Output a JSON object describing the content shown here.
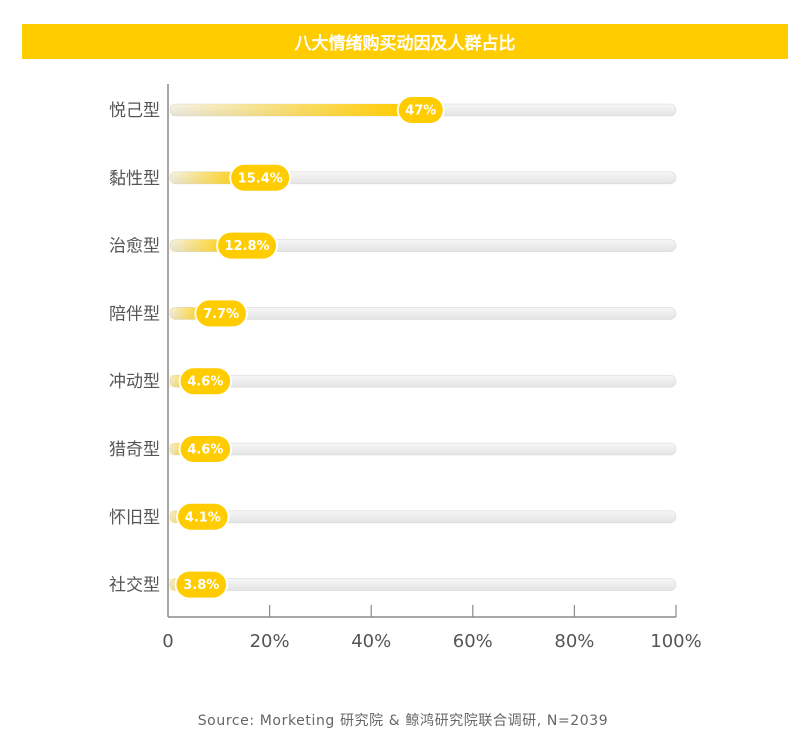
{
  "colors": {
    "accent": "#FFCC00",
    "track": "#ECECEC",
    "axis": "#8A8A8A",
    "label": "#555555",
    "badge_text": "#ffffff"
  },
  "chart_data": {
    "type": "bar",
    "orientation": "horizontal",
    "title": "八大情绪购买动因及人群占比",
    "categories": [
      "悦己型",
      "黏性型",
      "治愈型",
      "陪伴型",
      "冲动型",
      "猎奇型",
      "怀旧型",
      "社交型"
    ],
    "values": [
      47,
      15.4,
      12.8,
      7.7,
      4.6,
      4.6,
      4.1,
      3.8
    ],
    "value_labels": [
      "47%",
      "15.4%",
      "12.8%",
      "7.7%",
      "4.6%",
      "4.6%",
      "4.1%",
      "3.8%"
    ],
    "xlim": [
      0,
      100
    ],
    "xticks": [
      0,
      20,
      40,
      60,
      80,
      100
    ],
    "xtick_labels": [
      "0",
      "20%",
      "40%",
      "60%",
      "80%",
      "100%"
    ],
    "xlabel": "",
    "ylabel": "",
    "grid": false,
    "legend": "none"
  },
  "source": "Source: Morketing 研究院 & 鲸鸿研究院联合调研, N=2039"
}
